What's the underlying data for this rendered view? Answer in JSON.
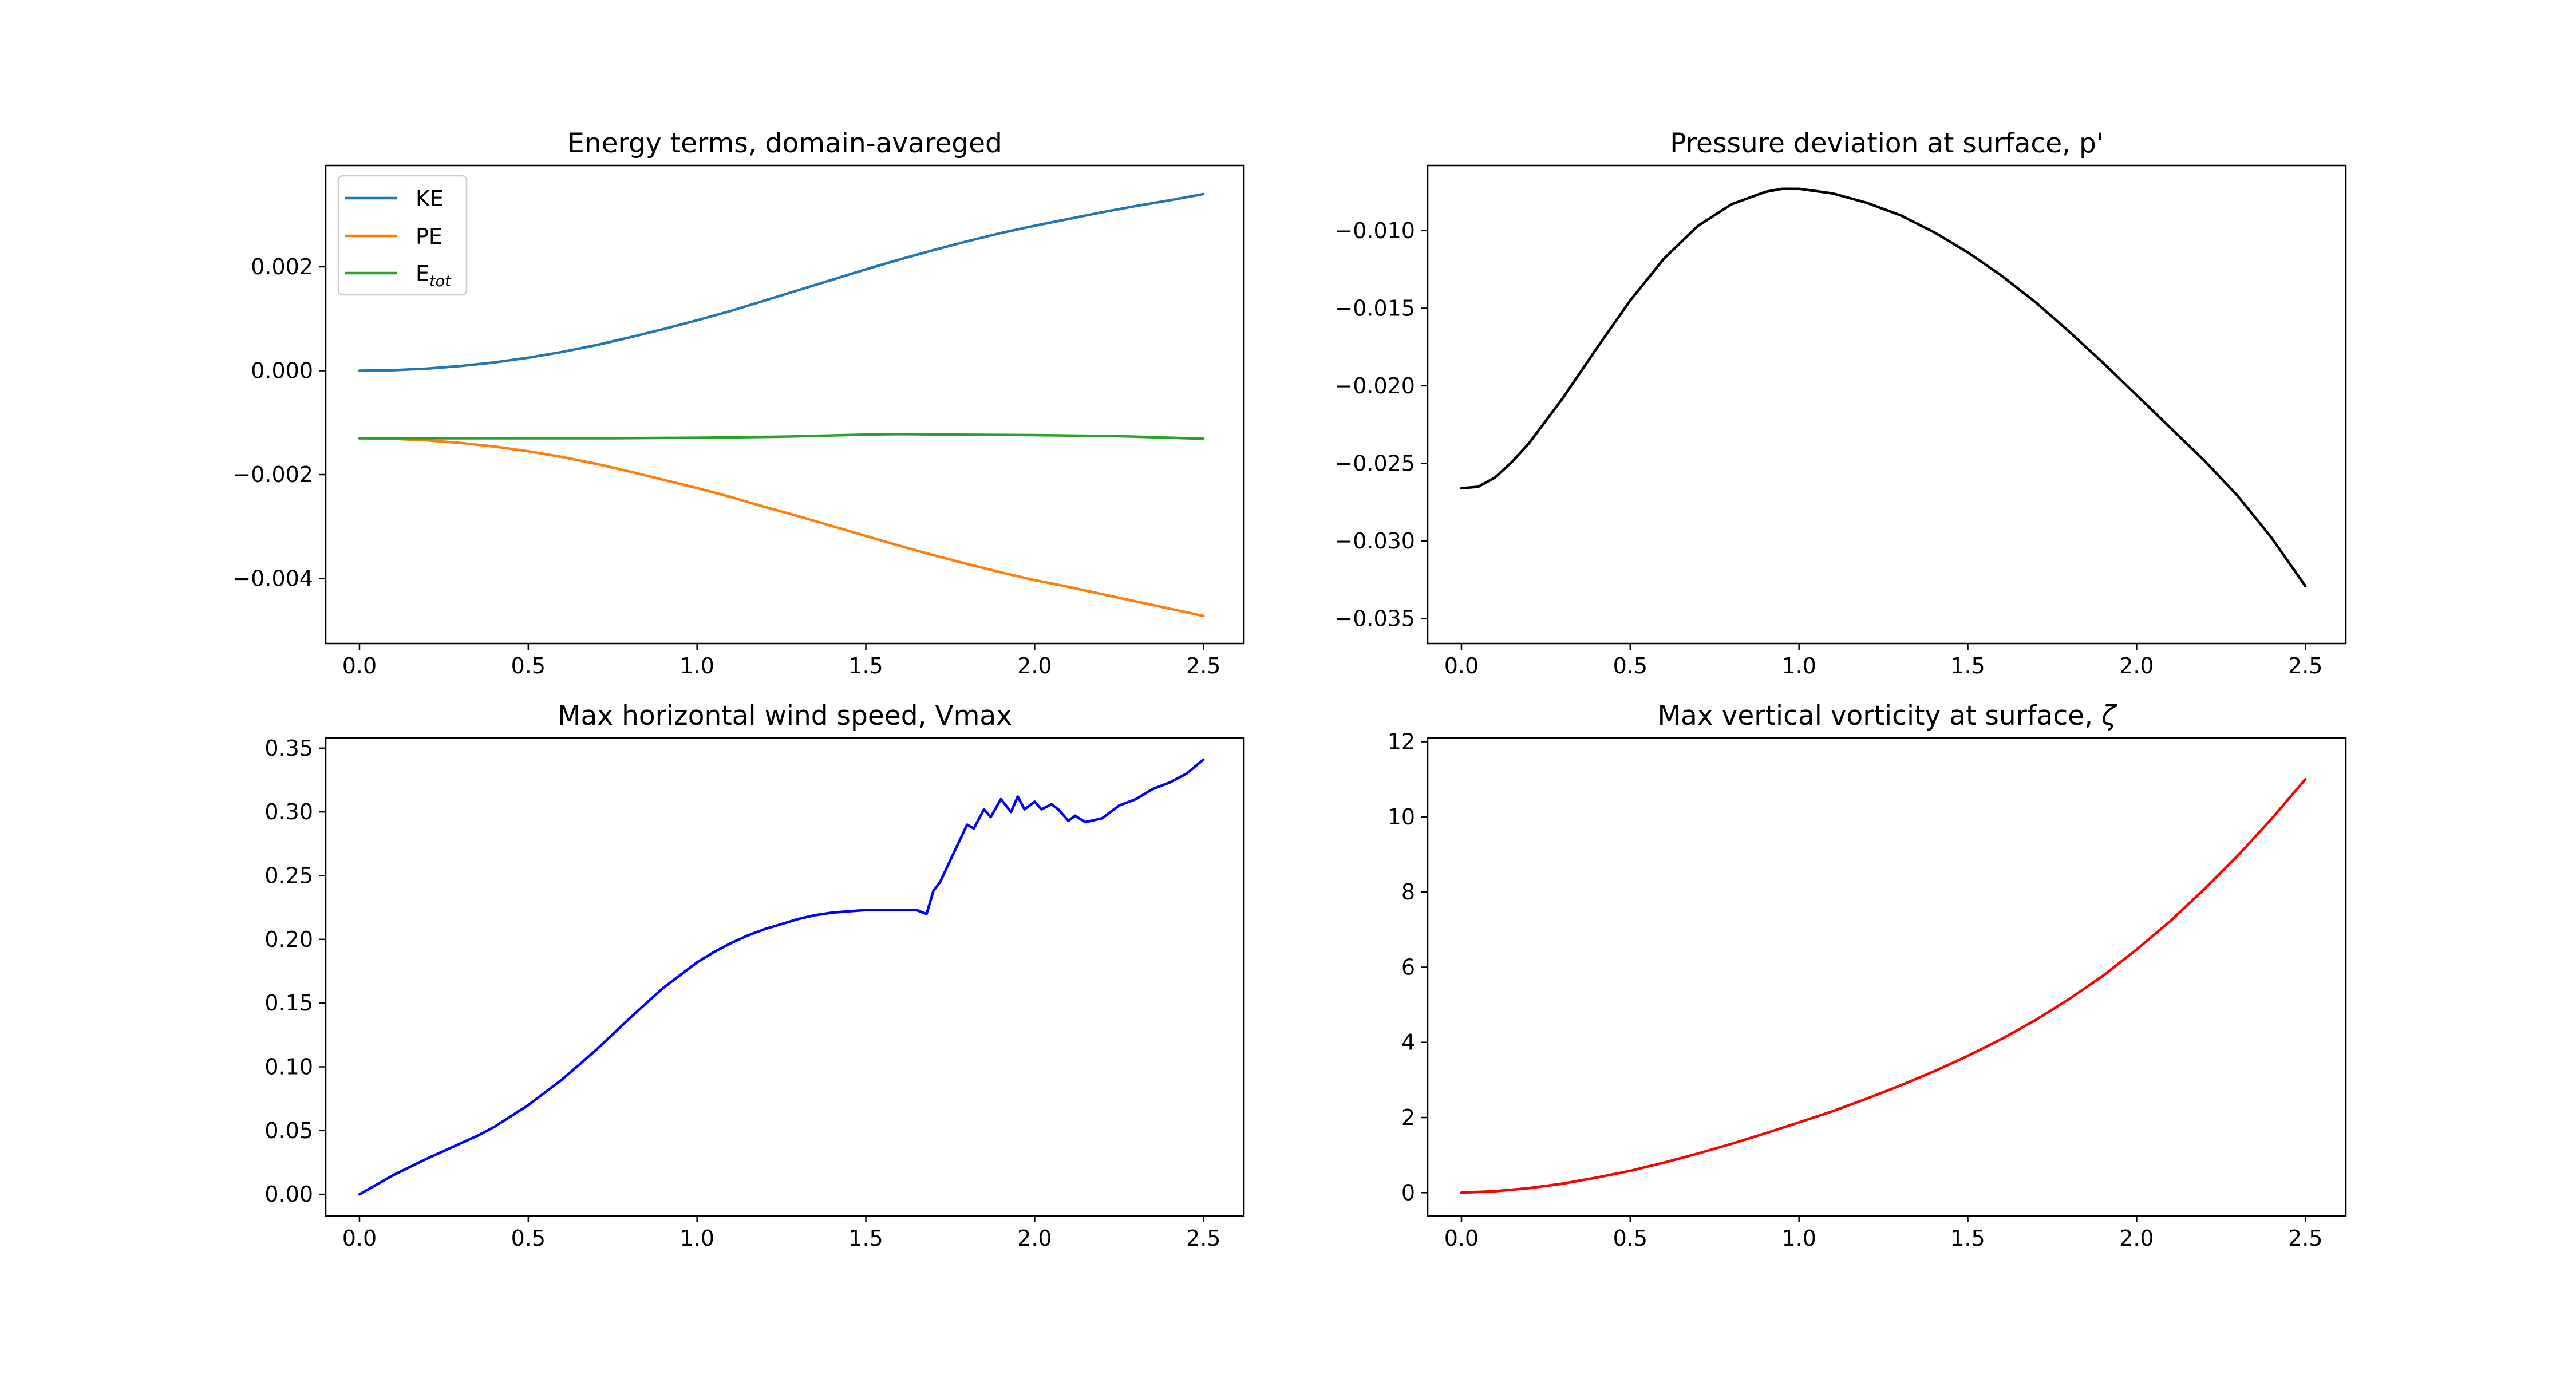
{
  "chart_data": [
    {
      "type": "line",
      "title": "Energy terms, domain-avareged",
      "xlabel": "",
      "ylabel": "",
      "xlim": [
        -0.1,
        2.62
      ],
      "ylim": [
        -0.00525,
        0.00395
      ],
      "xticks": [
        0.0,
        0.5,
        1.0,
        1.5,
        2.0,
        2.5
      ],
      "xtick_labels": [
        "0.0",
        "0.5",
        "1.0",
        "1.5",
        "2.0",
        "2.5"
      ],
      "yticks": [
        -0.004,
        -0.002,
        0.0,
        0.002
      ],
      "ytick_labels": [
        "−0.004",
        "−0.002",
        "0.000",
        "0.002"
      ],
      "grid": false,
      "legend": "top-left",
      "series": [
        {
          "name": "KE",
          "color": "#1f77b4",
          "x": [
            0.0,
            0.1,
            0.2,
            0.3,
            0.4,
            0.5,
            0.6,
            0.7,
            0.8,
            0.9,
            1.0,
            1.1,
            1.2,
            1.3,
            1.4,
            1.5,
            1.6,
            1.7,
            1.8,
            1.9,
            2.0,
            2.1,
            2.2,
            2.3,
            2.4,
            2.5
          ],
          "y": [
            0.0,
            1e-05,
            4e-05,
            9e-05,
            0.00016,
            0.00025,
            0.00036,
            0.00049,
            0.00064,
            0.0008,
            0.00097,
            0.00115,
            0.00135,
            0.00155,
            0.00175,
            0.00195,
            0.00214,
            0.00232,
            0.00249,
            0.00265,
            0.00279,
            0.00292,
            0.00305,
            0.00317,
            0.00328,
            0.0034
          ]
        },
        {
          "name": "PE",
          "name_main": "PE",
          "color": "#ff7f0e",
          "x": [
            0.0,
            0.1,
            0.2,
            0.3,
            0.4,
            0.5,
            0.6,
            0.7,
            0.8,
            0.9,
            1.0,
            1.1,
            1.2,
            1.3,
            1.4,
            1.5,
            1.6,
            1.7,
            1.8,
            1.9,
            2.0,
            2.1,
            2.2,
            2.3,
            2.4,
            2.5
          ],
          "y": [
            -0.0013,
            -0.00131,
            -0.00134,
            -0.00139,
            -0.00146,
            -0.00155,
            -0.00166,
            -0.00179,
            -0.00194,
            -0.0021,
            -0.00226,
            -0.00243,
            -0.00262,
            -0.0028,
            -0.00299,
            -0.00318,
            -0.00337,
            -0.00355,
            -0.00372,
            -0.00388,
            -0.00403,
            -0.00416,
            -0.0043,
            -0.00444,
            -0.00458,
            -0.00472
          ]
        },
        {
          "name": "E",
          "name_main": "E",
          "name_sub": "tot",
          "color": "#2ca02c",
          "x": [
            0.0,
            0.25,
            0.5,
            0.75,
            1.0,
            1.25,
            1.5,
            1.6,
            1.75,
            2.0,
            2.25,
            2.5
          ],
          "y": [
            -0.0013,
            -0.0013,
            -0.0013,
            -0.0013,
            -0.00129,
            -0.00127,
            -0.00123,
            -0.00122,
            -0.00123,
            -0.00124,
            -0.00126,
            -0.00131
          ]
        }
      ]
    },
    {
      "type": "line",
      "title": "Pressure deviation at surface, p'",
      "xlabel": "",
      "ylabel": "",
      "xlim": [
        -0.1,
        2.62
      ],
      "ylim": [
        -0.0366,
        -0.0058
      ],
      "xticks": [
        0.0,
        0.5,
        1.0,
        1.5,
        2.0,
        2.5
      ],
      "xtick_labels": [
        "0.0",
        "0.5",
        "1.0",
        "1.5",
        "2.0",
        "2.5"
      ],
      "yticks": [
        -0.035,
        -0.03,
        -0.025,
        -0.02,
        -0.015,
        -0.01
      ],
      "ytick_labels": [
        "−0.035",
        "−0.030",
        "−0.025",
        "−0.020",
        "−0.015",
        "−0.010"
      ],
      "grid": false,
      "series": [
        {
          "color": "#000000",
          "x": [
            0.0,
            0.05,
            0.1,
            0.15,
            0.2,
            0.3,
            0.4,
            0.5,
            0.6,
            0.7,
            0.8,
            0.9,
            0.95,
            1.0,
            1.1,
            1.2,
            1.3,
            1.4,
            1.5,
            1.6,
            1.7,
            1.8,
            1.9,
            2.0,
            2.1,
            2.2,
            2.3,
            2.4,
            2.5
          ],
          "y": [
            -0.0266,
            -0.0265,
            -0.0259,
            -0.0249,
            -0.0237,
            -0.0208,
            -0.0176,
            -0.0145,
            -0.0118,
            -0.0097,
            -0.0083,
            -0.0075,
            -0.0073,
            -0.0073,
            -0.0076,
            -0.0082,
            -0.009,
            -0.0101,
            -0.0114,
            -0.0129,
            -0.0146,
            -0.0165,
            -0.0185,
            -0.0206,
            -0.0227,
            -0.0248,
            -0.0271,
            -0.0298,
            -0.0329
          ]
        }
      ]
    },
    {
      "type": "line",
      "title": "Max horizontal wind speed, Vmax",
      "xlabel": "",
      "ylabel": "",
      "xlim": [
        -0.1,
        2.62
      ],
      "ylim": [
        -0.017,
        0.358
      ],
      "xticks": [
        0.0,
        0.5,
        1.0,
        1.5,
        2.0,
        2.5
      ],
      "xtick_labels": [
        "0.0",
        "0.5",
        "1.0",
        "1.5",
        "2.0",
        "2.5"
      ],
      "yticks": [
        0.0,
        0.05,
        0.1,
        0.15,
        0.2,
        0.25,
        0.3,
        0.35
      ],
      "ytick_labels": [
        "0.00",
        "0.05",
        "0.10",
        "0.15",
        "0.20",
        "0.25",
        "0.30",
        "0.35"
      ],
      "grid": false,
      "series": [
        {
          "color": "#0000ff",
          "x": [
            0.0,
            0.1,
            0.2,
            0.3,
            0.35,
            0.4,
            0.5,
            0.6,
            0.7,
            0.8,
            0.9,
            1.0,
            1.05,
            1.1,
            1.15,
            1.2,
            1.25,
            1.3,
            1.35,
            1.4,
            1.45,
            1.5,
            1.55,
            1.6,
            1.65,
            1.68,
            1.7,
            1.72,
            1.75,
            1.8,
            1.82,
            1.85,
            1.87,
            1.9,
            1.93,
            1.95,
            1.97,
            2.0,
            2.02,
            2.05,
            2.07,
            2.1,
            2.12,
            2.15,
            2.2,
            2.25,
            2.3,
            2.35,
            2.4,
            2.45,
            2.5
          ],
          "y": [
            0.0,
            0.015,
            0.028,
            0.04,
            0.046,
            0.053,
            0.07,
            0.09,
            0.113,
            0.138,
            0.162,
            0.182,
            0.19,
            0.197,
            0.203,
            0.208,
            0.212,
            0.216,
            0.219,
            0.221,
            0.222,
            0.223,
            0.223,
            0.223,
            0.223,
            0.22,
            0.238,
            0.245,
            0.262,
            0.29,
            0.287,
            0.302,
            0.296,
            0.31,
            0.3,
            0.312,
            0.302,
            0.308,
            0.302,
            0.306,
            0.302,
            0.293,
            0.297,
            0.292,
            0.295,
            0.305,
            0.31,
            0.318,
            0.323,
            0.33,
            0.341
          ]
        }
      ]
    },
    {
      "type": "line",
      "title": "Max vertical vorticity at surface, ",
      "title_symbol": "ζ",
      "xlabel": "",
      "ylabel": "",
      "xlim": [
        -0.1,
        2.62
      ],
      "ylim": [
        -0.62,
        12.1
      ],
      "xticks": [
        0.0,
        0.5,
        1.0,
        1.5,
        2.0,
        2.5
      ],
      "xtick_labels": [
        "0.0",
        "0.5",
        "1.0",
        "1.5",
        "2.0",
        "2.5"
      ],
      "yticks": [
        0,
        2,
        4,
        6,
        8,
        10,
        12
      ],
      "ytick_labels": [
        "0",
        "2",
        "4",
        "6",
        "8",
        "10",
        "12"
      ],
      "grid": false,
      "series": [
        {
          "color": "#ff0000",
          "x": [
            0.0,
            0.1,
            0.2,
            0.3,
            0.4,
            0.5,
            0.6,
            0.7,
            0.8,
            0.9,
            1.0,
            1.1,
            1.2,
            1.3,
            1.4,
            1.5,
            1.6,
            1.7,
            1.8,
            1.9,
            2.0,
            2.1,
            2.2,
            2.3,
            2.4,
            2.5
          ],
          "y": [
            0.0,
            0.04,
            0.12,
            0.24,
            0.4,
            0.58,
            0.8,
            1.04,
            1.3,
            1.58,
            1.87,
            2.17,
            2.5,
            2.85,
            3.23,
            3.64,
            4.09,
            4.59,
            5.15,
            5.77,
            6.47,
            7.23,
            8.07,
            8.97,
            9.95,
            11.0
          ]
        }
      ]
    }
  ]
}
